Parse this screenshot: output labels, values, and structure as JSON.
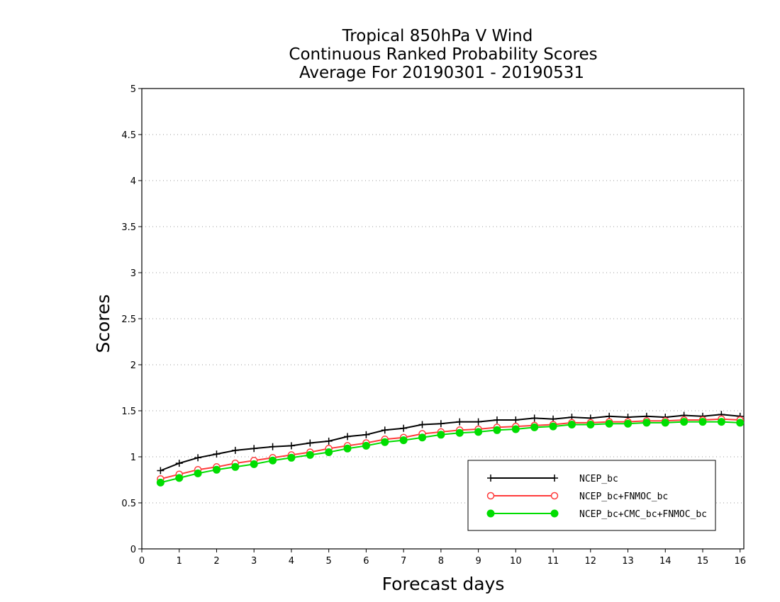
{
  "chart_data": {
    "type": "line",
    "title": [
      "Tropical 850hPa V Wind",
      "Continuous Ranked Probability Scores",
      "Average For 20190301 - 20190531"
    ],
    "xlabel": "Forecast days",
    "ylabel": "Scores",
    "xlim": [
      0,
      16.1
    ],
    "ylim": [
      0,
      5
    ],
    "xticks": [
      "0",
      "1",
      "2",
      "3",
      "4",
      "5",
      "6",
      "7",
      "8",
      "9",
      "10",
      "11",
      "12",
      "13",
      "14",
      "15",
      "16"
    ],
    "yticks": [
      "0",
      "0.5",
      "1",
      "1.5",
      "2",
      "2.5",
      "3",
      "3.5",
      "4",
      "4.5",
      "5"
    ],
    "grid": "horizontal dotted",
    "legend_position": "lower-right",
    "x": [
      0.5,
      1,
      1.5,
      2,
      2.5,
      3,
      3.5,
      4,
      4.5,
      5,
      5.5,
      6,
      6.5,
      7,
      7.5,
      8,
      8.5,
      9,
      9.5,
      10,
      10.5,
      11,
      11.5,
      12,
      12.5,
      13,
      13.5,
      14,
      14.5,
      15,
      15.5,
      16
    ],
    "series": [
      {
        "name": "NCEP_bc",
        "color": "#000000",
        "marker": "plus",
        "values": [
          0.85,
          0.93,
          0.99,
          1.03,
          1.07,
          1.09,
          1.11,
          1.12,
          1.15,
          1.17,
          1.22,
          1.24,
          1.29,
          1.31,
          1.35,
          1.36,
          1.38,
          1.38,
          1.4,
          1.4,
          1.42,
          1.41,
          1.43,
          1.42,
          1.44,
          1.43,
          1.44,
          1.43,
          1.45,
          1.44,
          1.46,
          1.44
        ]
      },
      {
        "name": "NCEP_bc+FNMOC_bc",
        "color": "#ff3b3b",
        "marker": "open-circle",
        "values": [
          0.76,
          0.81,
          0.86,
          0.89,
          0.93,
          0.96,
          0.99,
          1.02,
          1.05,
          1.09,
          1.12,
          1.15,
          1.19,
          1.21,
          1.25,
          1.27,
          1.29,
          1.3,
          1.32,
          1.33,
          1.34,
          1.35,
          1.37,
          1.37,
          1.38,
          1.38,
          1.39,
          1.39,
          1.4,
          1.4,
          1.41,
          1.4
        ]
      },
      {
        "name": "NCEP_bc+CMC_bc+FNMOC_bc",
        "color": "#00dd00",
        "marker": "filled-circle",
        "values": [
          0.72,
          0.77,
          0.82,
          0.86,
          0.89,
          0.92,
          0.96,
          0.99,
          1.02,
          1.05,
          1.09,
          1.12,
          1.16,
          1.18,
          1.21,
          1.24,
          1.26,
          1.27,
          1.29,
          1.3,
          1.32,
          1.33,
          1.35,
          1.35,
          1.36,
          1.36,
          1.37,
          1.37,
          1.38,
          1.38,
          1.38,
          1.37
        ]
      }
    ]
  }
}
